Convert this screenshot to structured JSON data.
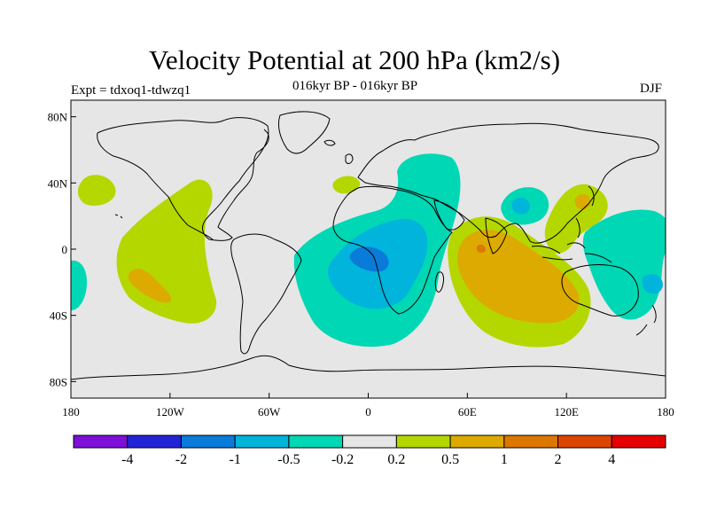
{
  "title": "Velocity Potential at 200 hPa (km2/s)",
  "subtitle": "016kyr BP - 016kyr BP",
  "expt_label": "Expt = tdxoq1-tdwzq1",
  "season": "DJF",
  "map": {
    "projection": "cylindrical equidistant",
    "lon_range": [
      -180,
      180
    ],
    "lat_range": [
      -90,
      90
    ],
    "background_color": "#e6e6e6",
    "coastline_color": "#000000"
  },
  "axes": {
    "lat_ticks": [
      {
        "value": 80,
        "label": "80N"
      },
      {
        "value": 40,
        "label": "40N"
      },
      {
        "value": 0,
        "label": "0"
      },
      {
        "value": -40,
        "label": "40S"
      },
      {
        "value": -80,
        "label": "80S"
      }
    ],
    "lon_ticks": [
      {
        "value": -180,
        "label": "180"
      },
      {
        "value": -120,
        "label": "120W"
      },
      {
        "value": -60,
        "label": "60W"
      },
      {
        "value": 0,
        "label": "0"
      },
      {
        "value": 60,
        "label": "60E"
      },
      {
        "value": 120,
        "label": "120E"
      },
      {
        "value": 180,
        "label": "180"
      }
    ]
  },
  "colorbar": {
    "colors": [
      "#7d0fd9",
      "#2323d6",
      "#0a7bd8",
      "#00b4dc",
      "#00d7b4",
      "#e6e6e6",
      "#b4d700",
      "#dcaa00",
      "#dc7800",
      "#dc4600",
      "#e60000"
    ],
    "labels": [
      "-4",
      "-2",
      "-1",
      "-0.5",
      "-0.2",
      "0.2",
      "0.5",
      "1",
      "2",
      "4"
    ]
  },
  "colors": {
    "lvl_neg_0_5": "#00b4dc",
    "lvl_neg_0_2": "#00d7b4",
    "lvl_pos_0_2": "#b4d700",
    "lvl_pos_0_5": "#dcaa00",
    "lvl_pos_1": "#dc7800",
    "lvl_neg_1": "#0a7bd8"
  }
}
